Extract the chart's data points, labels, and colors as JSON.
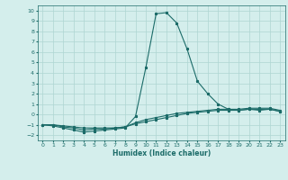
{
  "title": "",
  "xlabel": "Humidex (Indice chaleur)",
  "xlim": [
    -0.5,
    23.5
  ],
  "ylim": [
    -2.5,
    10.5
  ],
  "xticks": [
    0,
    1,
    2,
    3,
    4,
    5,
    6,
    7,
    8,
    9,
    10,
    11,
    12,
    13,
    14,
    15,
    16,
    17,
    18,
    19,
    20,
    21,
    22,
    23
  ],
  "yticks": [
    -2,
    -1,
    0,
    1,
    2,
    3,
    4,
    5,
    6,
    7,
    8,
    9,
    10
  ],
  "bg_color": "#d4eeec",
  "line_color": "#1b6b68",
  "grid_color": "#aed5d2",
  "line1_x": [
    0,
    1,
    2,
    3,
    4,
    5,
    6,
    7,
    8,
    9,
    10,
    11,
    12,
    13,
    14,
    15,
    16,
    17,
    18,
    19,
    20,
    21,
    22,
    23
  ],
  "line1_y": [
    -1.0,
    -1.1,
    -1.3,
    -1.5,
    -1.7,
    -1.6,
    -1.5,
    -1.4,
    -1.3,
    -0.2,
    4.5,
    9.7,
    9.8,
    8.8,
    6.3,
    3.2,
    2.0,
    1.0,
    0.5,
    0.4,
    0.5,
    0.4,
    0.5,
    0.3
  ],
  "line2_x": [
    0,
    1,
    2,
    3,
    4,
    5,
    6,
    7,
    8,
    9,
    10,
    11,
    12,
    13,
    14,
    15,
    16,
    17,
    18,
    19,
    20,
    21,
    22,
    23
  ],
  "line2_y": [
    -1.0,
    -1.0,
    -1.2,
    -1.3,
    -1.5,
    -1.4,
    -1.4,
    -1.3,
    -1.2,
    -0.8,
    -0.5,
    -0.3,
    -0.1,
    0.1,
    0.2,
    0.3,
    0.4,
    0.5,
    0.5,
    0.5,
    0.6,
    0.6,
    0.6,
    0.4
  ],
  "line3_x": [
    0,
    1,
    2,
    3,
    4,
    5,
    6,
    7,
    8,
    9,
    10,
    11,
    12,
    13,
    14,
    15,
    16,
    17,
    18,
    19,
    20,
    21,
    22,
    23
  ],
  "line3_y": [
    -1.0,
    -1.0,
    -1.1,
    -1.2,
    -1.3,
    -1.3,
    -1.3,
    -1.3,
    -1.2,
    -0.9,
    -0.7,
    -0.5,
    -0.3,
    -0.1,
    0.1,
    0.2,
    0.3,
    0.4,
    0.4,
    0.4,
    0.5,
    0.5,
    0.5,
    0.3
  ]
}
